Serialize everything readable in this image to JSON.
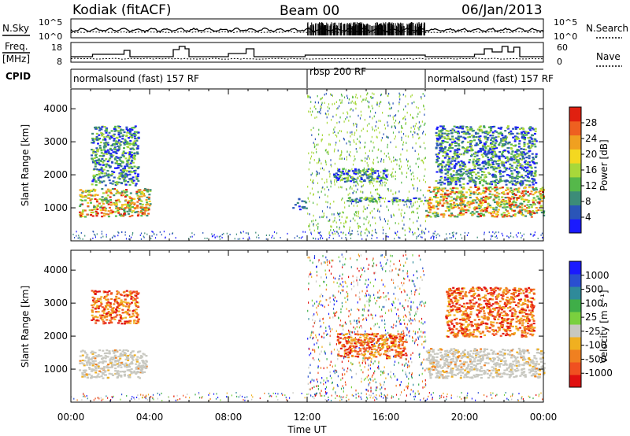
{
  "header": {
    "station": "Kodiak (fitACF)",
    "beam": "Beam 00",
    "date": "06/Jan/2013"
  },
  "left_labels": {
    "nsky": "N.Sky",
    "freq": "Freq.",
    "freq_unit": "[MHz]",
    "cpid": "CPID"
  },
  "right_labels": {
    "nsearch": "N.Search",
    "nave": "Nave"
  },
  "noise_panel": {
    "left_ticks": [
      "10^5",
      "10^0"
    ],
    "right_ticks": [
      "10^5",
      "10^0"
    ]
  },
  "freq_panel": {
    "left_ticks": [
      "18",
      "8"
    ],
    "right_ticks": [
      "60",
      "0"
    ]
  },
  "cpid_segments": [
    {
      "label": "normalsound (fast) 157 RF",
      "start_hour": 0,
      "end_hour": 12
    },
    {
      "label": "rbsp 200 RF",
      "start_hour": 12,
      "end_hour": 18
    },
    {
      "label": "normalsound (fast) 157 RF",
      "start_hour": 18,
      "end_hour": 24
    }
  ],
  "colors": {
    "power_scale": [
      "#1a1aff",
      "#2a55b8",
      "#3c8c78",
      "#55b84a",
      "#a8d83a",
      "#f4d820",
      "#f0a020",
      "#ee6020",
      "#e02010"
    ],
    "velocity_scale": [
      "#1a1aff",
      "#2a4fd0",
      "#2f8a9a",
      "#3fae48",
      "#7ad03e",
      "#c8c8c0",
      "#f0b020",
      "#f08020",
      "#f05020",
      "#e01010"
    ]
  },
  "chart_data": [
    {
      "type": "heatmap",
      "title": "Power",
      "xlabel": "",
      "ylabel": "Slant Range [km]",
      "xlim": [
        0,
        24
      ],
      "ylim": [
        0,
        4600
      ],
      "x_ticks": [
        "00:00",
        "04:00",
        "08:00",
        "12:00",
        "16:00",
        "20:00",
        "00:00"
      ],
      "y_ticks": [
        1000,
        2000,
        3000,
        4000
      ],
      "colorbar": {
        "label": "Power [dB]",
        "ticks": [
          4,
          8,
          12,
          16,
          20,
          24,
          28
        ],
        "range": [
          0,
          30
        ]
      },
      "regions": [
        {
          "hours": [
            0.4,
            4.0
          ],
          "range_km": [
            750,
            1600
          ],
          "level": "strong"
        },
        {
          "hours": [
            1.0,
            3.4
          ],
          "range_km": [
            1700,
            3500
          ],
          "level": "moderate"
        },
        {
          "hours": [
            11.2,
            12.0
          ],
          "range_km": [
            950,
            1300
          ],
          "level": "weak"
        },
        {
          "hours": [
            12.0,
            18.0
          ],
          "range_km": [
            200,
            4500
          ],
          "level": "scatter"
        },
        {
          "hours": [
            13.3,
            16.0
          ],
          "range_km": [
            1800,
            2200
          ],
          "level": "moderate"
        },
        {
          "hours": [
            14.0,
            18.0
          ],
          "range_km": [
            1200,
            1350
          ],
          "level": "moderate"
        },
        {
          "hours": [
            18.0,
            24.0
          ],
          "range_km": [
            750,
            1650
          ],
          "level": "strong"
        },
        {
          "hours": [
            18.5,
            23.6
          ],
          "range_km": [
            1700,
            3500
          ],
          "level": "moderate"
        }
      ]
    },
    {
      "type": "heatmap",
      "title": "Velocity",
      "xlabel": "Time UT",
      "ylabel": "Slant Range [km]",
      "xlim": [
        0,
        24
      ],
      "ylim": [
        0,
        4600
      ],
      "x_ticks": [
        "00:00",
        "04:00",
        "08:00",
        "12:00",
        "16:00",
        "20:00",
        "00:00"
      ],
      "y_ticks": [
        1000,
        2000,
        3000,
        4000
      ],
      "colorbar": {
        "label": "Velocity [m s⁻¹]",
        "ticks": [
          "1000",
          "500",
          "100",
          "25",
          "-25",
          "-100",
          "-500",
          "-1000"
        ]
      },
      "regions": [
        {
          "hours": [
            0.4,
            3.8
          ],
          "range_km": [
            750,
            1600
          ],
          "level": "ground scatter"
        },
        {
          "hours": [
            1.0,
            3.4
          ],
          "range_km": [
            2400,
            3400
          ],
          "level": "negative"
        },
        {
          "hours": [
            12.0,
            18.0
          ],
          "range_km": [
            200,
            4500
          ],
          "level": "scatter"
        },
        {
          "hours": [
            13.5,
            17.0
          ],
          "range_km": [
            1350,
            2100
          ],
          "level": "negative"
        },
        {
          "hours": [
            18.0,
            24.0
          ],
          "range_km": [
            750,
            1650
          ],
          "level": "ground scatter"
        },
        {
          "hours": [
            19.0,
            23.5
          ],
          "range_km": [
            2000,
            3500
          ],
          "level": "negative"
        }
      ]
    }
  ]
}
